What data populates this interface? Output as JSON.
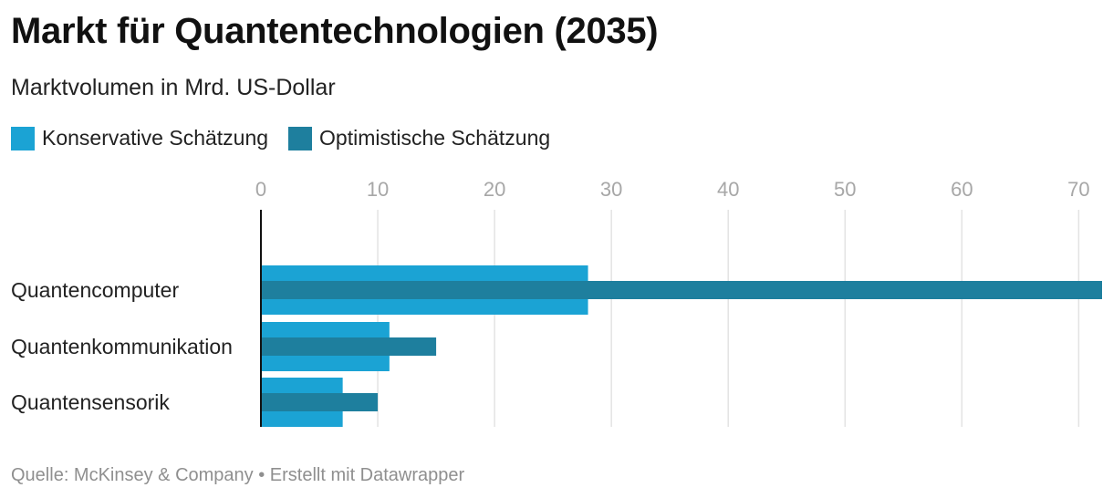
{
  "header": {
    "title": "Markt für Quantentechnologien (2035)",
    "subtitle": "Marktvolumen in Mrd. US-Dollar"
  },
  "legend": {
    "items": [
      {
        "label": "Konservative Schätzung",
        "color": "#1ba3d4"
      },
      {
        "label": "Optimistische Schätzung",
        "color": "#1e7f9e"
      }
    ]
  },
  "footer": {
    "source": "Quelle: McKinsey & Company • Erstellt mit Datawrapper"
  },
  "chart_data": {
    "type": "bar",
    "orientation": "horizontal",
    "title": "Markt für Quantentechnologien (2035)",
    "subtitle": "Marktvolumen in Mrd. US-Dollar",
    "categories": [
      "Quantencomputer",
      "Quantenkommunikation",
      "Quantensensorik"
    ],
    "series": [
      {
        "name": "Konservative Schätzung",
        "values": [
          28,
          11,
          7
        ],
        "color": "#1ba3d4"
      },
      {
        "name": "Optimistische Schätzung",
        "values": [
          72,
          15,
          10
        ],
        "color": "#1e7f9e"
      }
    ],
    "xlim": [
      0,
      72
    ],
    "xticks": [
      0,
      10,
      20,
      30,
      40,
      50,
      60,
      70
    ],
    "xlabel": "",
    "ylabel": "",
    "grid": true,
    "legend_position": "top-left"
  }
}
